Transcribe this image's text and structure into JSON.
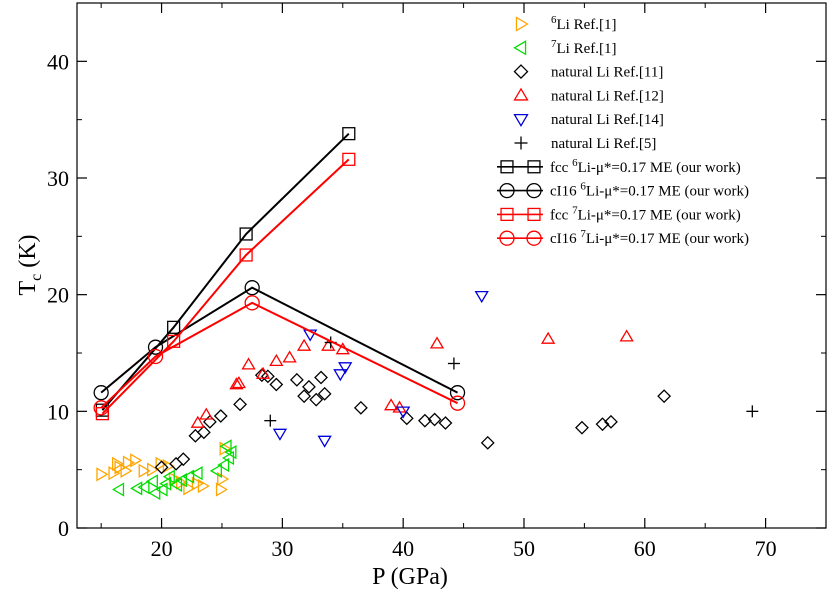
{
  "chart_data": {
    "type": "scatter",
    "xlabel": "P (GPa)",
    "ylabel": "T",
    "ylabel_sub": "c",
    "ylabel_unit": " (K)",
    "xlim": [
      13,
      75
    ],
    "ylim": [
      0,
      45
    ],
    "xticks": [
      20,
      30,
      40,
      50,
      60,
      70
    ],
    "yticks": [
      0,
      10,
      20,
      30,
      40
    ],
    "series": [
      {
        "name": "Li Ref.[1]",
        "sup": "6",
        "marker": "triangle-right",
        "color": "#ffa500",
        "line": false,
        "points": [
          [
            15.0,
            4.6
          ],
          [
            16.0,
            4.7
          ],
          [
            16.5,
            5.2
          ],
          [
            17.2,
            5.6
          ],
          [
            17.8,
            5.8
          ],
          [
            18.5,
            4.9
          ],
          [
            19.2,
            5.0
          ],
          [
            19.9,
            5.5
          ],
          [
            20.5,
            5.3
          ],
          [
            21.0,
            4.2
          ],
          [
            21.6,
            3.9
          ],
          [
            22.2,
            3.4
          ],
          [
            22.9,
            3.8
          ],
          [
            23.4,
            3.6
          ],
          [
            24.9,
            3.3
          ],
          [
            25.0,
            4.2
          ],
          [
            25.2,
            6.8
          ],
          [
            16.3,
            5.5
          ],
          [
            17.0,
            4.9
          ]
        ]
      },
      {
        "name": "Li Ref.[1]",
        "sup": "7",
        "marker": "triangle-left",
        "color": "#00dd00",
        "line": false,
        "points": [
          [
            16.5,
            3.3
          ],
          [
            18.0,
            3.4
          ],
          [
            18.6,
            3.5
          ],
          [
            19.5,
            3.0
          ],
          [
            20.1,
            3.3
          ],
          [
            20.4,
            3.8
          ],
          [
            21.3,
            3.7
          ],
          [
            21.7,
            4.1
          ],
          [
            22.3,
            4.4
          ],
          [
            23.0,
            4.7
          ],
          [
            24.6,
            4.9
          ],
          [
            25.2,
            5.4
          ],
          [
            25.6,
            6.0
          ],
          [
            25.8,
            6.5
          ],
          [
            25.4,
            7.0
          ],
          [
            19.3,
            4.0
          ],
          [
            20.7,
            4.4
          ]
        ]
      },
      {
        "name": "natural Li Ref.[11]",
        "marker": "diamond",
        "color": "#000000",
        "line": false,
        "points": [
          [
            20.0,
            5.2
          ],
          [
            21.2,
            5.5
          ],
          [
            21.8,
            5.9
          ],
          [
            22.8,
            7.9
          ],
          [
            23.5,
            8.2
          ],
          [
            24.0,
            9.1
          ],
          [
            24.9,
            9.6
          ],
          [
            26.5,
            10.6
          ],
          [
            28.3,
            13.1
          ],
          [
            28.8,
            13.0
          ],
          [
            29.5,
            12.3
          ],
          [
            31.2,
            12.7
          ],
          [
            31.8,
            11.3
          ],
          [
            32.2,
            12.1
          ],
          [
            32.8,
            11.0
          ],
          [
            33.2,
            12.9
          ],
          [
            33.5,
            11.5
          ],
          [
            36.5,
            10.3
          ],
          [
            40.3,
            9.4
          ],
          [
            41.8,
            9.2
          ],
          [
            42.6,
            9.3
          ],
          [
            43.5,
            9.0
          ],
          [
            47.0,
            7.3
          ],
          [
            54.8,
            8.6
          ],
          [
            56.5,
            8.9
          ],
          [
            57.2,
            9.1
          ],
          [
            61.6,
            11.3
          ]
        ]
      },
      {
        "name": "natural Li Ref.[12]",
        "marker": "triangle-up",
        "color": "#ff0000",
        "line": false,
        "points": [
          [
            23.0,
            9.0
          ],
          [
            23.7,
            9.7
          ],
          [
            26.2,
            12.3
          ],
          [
            26.4,
            12.4
          ],
          [
            27.2,
            14.0
          ],
          [
            28.4,
            13.2
          ],
          [
            29.5,
            14.3
          ],
          [
            30.6,
            14.6
          ],
          [
            31.8,
            15.6
          ],
          [
            33.8,
            15.6
          ],
          [
            35.0,
            15.3
          ],
          [
            39.0,
            10.5
          ],
          [
            39.7,
            10.3
          ],
          [
            42.8,
            15.8
          ],
          [
            52.0,
            16.2
          ],
          [
            58.5,
            16.4
          ]
        ]
      },
      {
        "name": "natural Li Ref.[14]",
        "marker": "triangle-down",
        "color": "#0000dd",
        "line": false,
        "points": [
          [
            29.8,
            8.1
          ],
          [
            32.3,
            16.6
          ],
          [
            33.5,
            7.5
          ],
          [
            34.8,
            13.2
          ],
          [
            35.2,
            13.8
          ],
          [
            40.0,
            10.0
          ],
          [
            46.5,
            19.9
          ]
        ]
      },
      {
        "name": "natural Li Ref.[5]",
        "marker": "plus",
        "color": "#000000",
        "line": false,
        "points": [
          [
            29.0,
            9.2
          ],
          [
            34.0,
            15.9
          ],
          [
            44.2,
            14.1
          ],
          [
            68.9,
            10.0
          ]
        ]
      },
      {
        "name": "Li-μ*=0.17 ME (our work)",
        "prefix": "fcc ",
        "sup": "6",
        "marker": "square",
        "color": "#000000",
        "line": true,
        "points": [
          [
            15.1,
            10.1
          ],
          [
            21.0,
            17.2
          ],
          [
            27.0,
            25.2
          ],
          [
            35.5,
            33.8
          ]
        ]
      },
      {
        "name": "Li-μ*=0.17 ME (our work)",
        "prefix": "cI16 ",
        "sup": "6",
        "marker": "circle",
        "color": "#000000",
        "line": true,
        "points": [
          [
            15.0,
            11.6
          ],
          [
            19.5,
            15.5
          ],
          [
            27.5,
            20.6
          ],
          [
            44.5,
            11.6
          ]
        ]
      },
      {
        "name": "Li-μ*=0.17 ME (our work)",
        "prefix": "fcc ",
        "sup": "7",
        "marker": "square",
        "color": "#ff0000",
        "line": true,
        "points": [
          [
            15.1,
            9.8
          ],
          [
            21.0,
            16.0
          ],
          [
            27.0,
            23.4
          ],
          [
            35.5,
            31.6
          ]
        ]
      },
      {
        "name": "Li-μ*=0.17 ME (our work)",
        "prefix": "cI16 ",
        "sup": "7",
        "marker": "circle",
        "color": "#ff0000",
        "line": true,
        "points": [
          [
            15.0,
            10.3
          ],
          [
            19.5,
            14.7
          ],
          [
            27.5,
            19.3
          ],
          [
            44.5,
            10.7
          ]
        ]
      }
    ]
  }
}
